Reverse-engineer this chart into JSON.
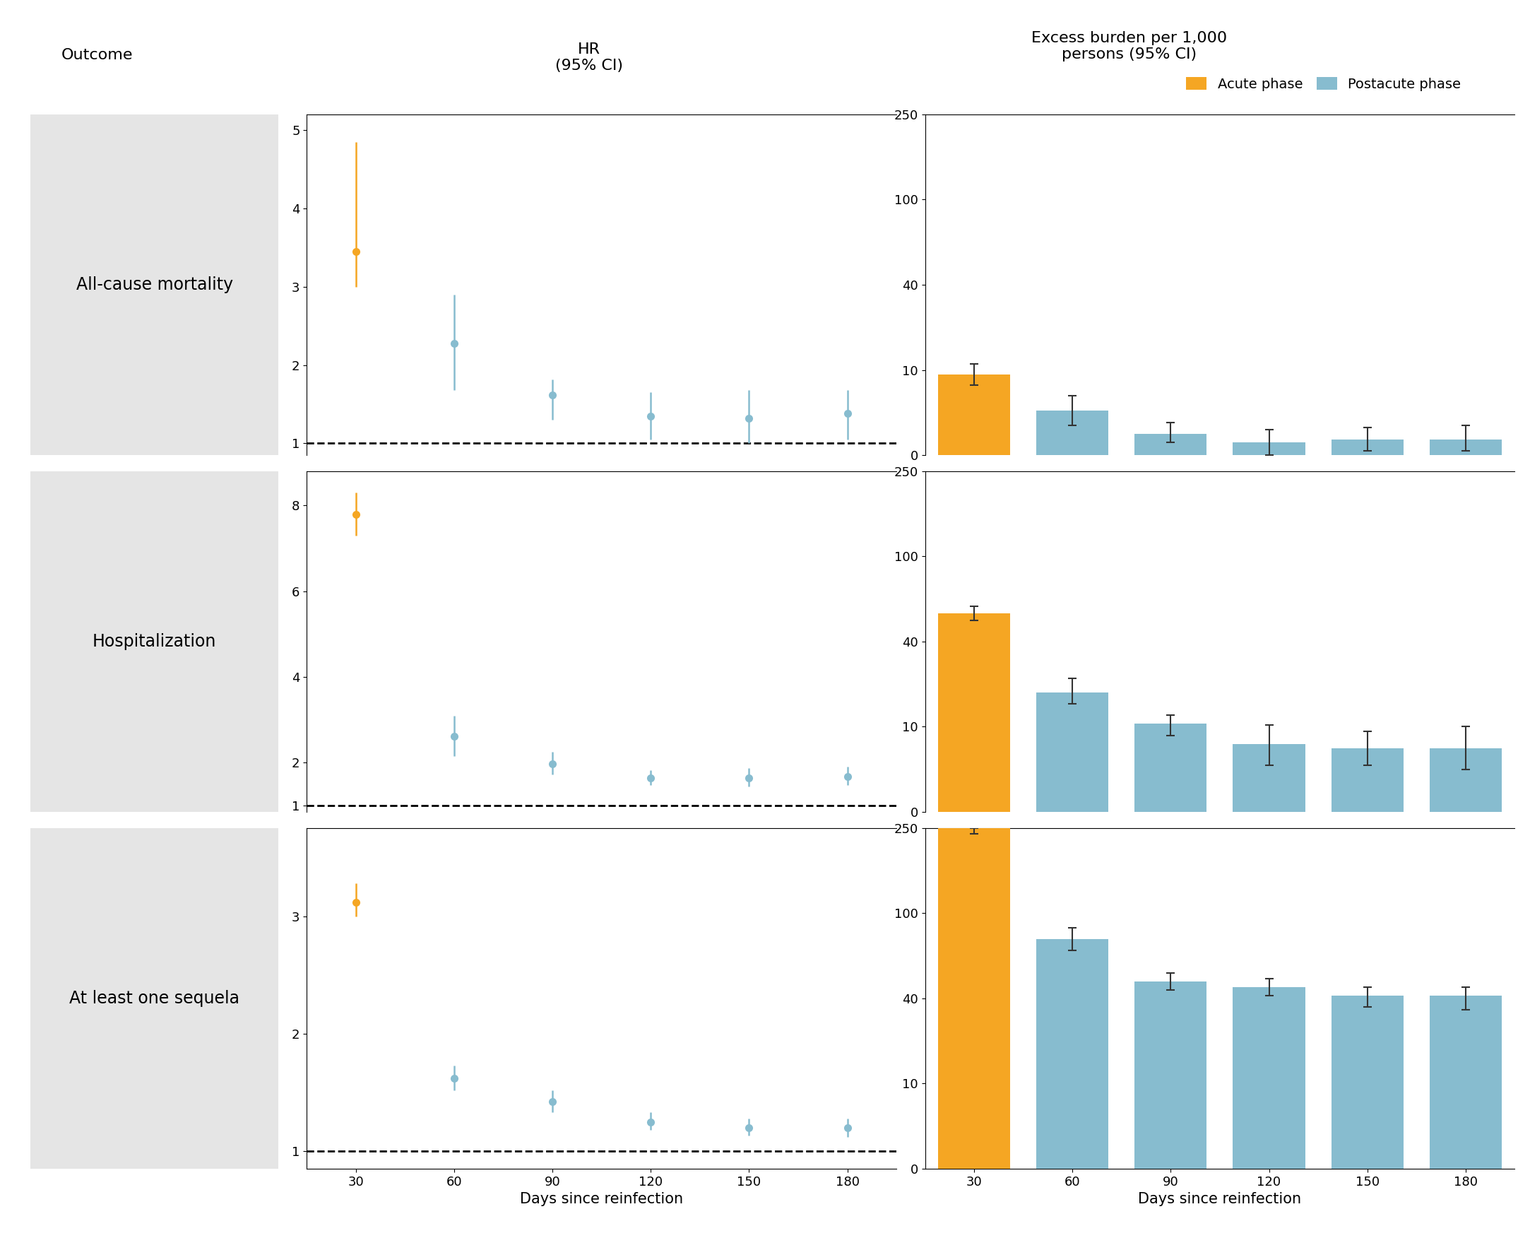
{
  "rows": [
    "All-cause mortality",
    "Hospitalization",
    "At least one sequela"
  ],
  "days": [
    30,
    60,
    90,
    120,
    150,
    180
  ],
  "hr_data": [
    {
      "acute": {
        "val": 3.45,
        "lo": 3.0,
        "hi": 4.85
      },
      "postacute": [
        {
          "val": 2.28,
          "lo": 1.68,
          "hi": 2.9
        },
        {
          "val": 1.62,
          "lo": 1.3,
          "hi": 1.82
        },
        {
          "val": 1.35,
          "lo": 1.05,
          "hi": 1.65
        },
        {
          "val": 1.32,
          "lo": 1.0,
          "hi": 1.68
        },
        {
          "val": 1.38,
          "lo": 1.05,
          "hi": 1.68
        }
      ],
      "ylim": [
        0.85,
        5.2
      ],
      "yticks": [
        1,
        2,
        3,
        4,
        5
      ]
    },
    {
      "acute": {
        "val": 7.8,
        "lo": 7.3,
        "hi": 8.3
      },
      "postacute": [
        {
          "val": 2.62,
          "lo": 2.15,
          "hi": 3.1
        },
        {
          "val": 1.97,
          "lo": 1.72,
          "hi": 2.25
        },
        {
          "val": 1.65,
          "lo": 1.48,
          "hi": 1.82
        },
        {
          "val": 1.65,
          "lo": 1.45,
          "hi": 1.88
        },
        {
          "val": 1.68,
          "lo": 1.48,
          "hi": 1.9
        }
      ],
      "ylim": [
        0.85,
        8.8
      ],
      "yticks": [
        1,
        2,
        4,
        6,
        8
      ]
    },
    {
      "acute": {
        "val": 3.12,
        "lo": 3.0,
        "hi": 3.28
      },
      "postacute": [
        {
          "val": 1.62,
          "lo": 1.52,
          "hi": 1.73
        },
        {
          "val": 1.42,
          "lo": 1.33,
          "hi": 1.52
        },
        {
          "val": 1.25,
          "lo": 1.18,
          "hi": 1.33
        },
        {
          "val": 1.2,
          "lo": 1.13,
          "hi": 1.28
        },
        {
          "val": 1.2,
          "lo": 1.12,
          "hi": 1.28
        }
      ],
      "ylim": [
        0.85,
        3.75
      ],
      "yticks": [
        1,
        2,
        3
      ]
    }
  ],
  "bar_data": [
    {
      "acute": {
        "val": 9.5,
        "lo": 8.2,
        "hi": 12.2
      },
      "postacute": [
        {
          "val": 5.2,
          "lo": 3.5,
          "hi": 7.0
        },
        {
          "val": 2.5,
          "lo": 1.5,
          "hi": 3.8
        },
        {
          "val": 1.5,
          "lo": 0.0,
          "hi": 3.0
        },
        {
          "val": 1.8,
          "lo": 0.5,
          "hi": 3.2
        },
        {
          "val": 1.8,
          "lo": 0.5,
          "hi": 3.5
        }
      ],
      "ytick_vals": [
        0,
        10,
        40,
        100,
        250
      ],
      "ytick_labels": [
        "0",
        "10",
        "40",
        "100",
        "250"
      ]
    },
    {
      "acute": {
        "val": 60.0,
        "lo": 55.0,
        "hi": 65.0
      },
      "postacute": [
        {
          "val": 22.0,
          "lo": 18.0,
          "hi": 27.0
        },
        {
          "val": 11.0,
          "lo": 9.0,
          "hi": 14.0
        },
        {
          "val": 8.0,
          "lo": 5.5,
          "hi": 10.5
        },
        {
          "val": 7.5,
          "lo": 5.5,
          "hi": 9.5
        },
        {
          "val": 7.5,
          "lo": 5.0,
          "hi": 10.0
        }
      ],
      "ytick_vals": [
        0,
        10,
        40,
        100,
        250
      ],
      "ytick_labels": [
        "0",
        "10",
        "40",
        "100",
        "250"
      ]
    },
    {
      "acute": {
        "val": 250.0,
        "lo": 240.0,
        "hi": 258.0
      },
      "postacute": [
        {
          "val": 82.0,
          "lo": 74.0,
          "hi": 90.0
        },
        {
          "val": 52.0,
          "lo": 46.0,
          "hi": 58.0
        },
        {
          "val": 48.0,
          "lo": 42.0,
          "hi": 54.0
        },
        {
          "val": 42.0,
          "lo": 37.0,
          "hi": 48.0
        },
        {
          "val": 42.0,
          "lo": 36.0,
          "hi": 48.0
        }
      ],
      "ytick_vals": [
        0,
        10,
        40,
        100,
        250
      ],
      "ytick_labels": [
        "0",
        "10",
        "40",
        "100",
        "250"
      ]
    }
  ],
  "orange_color": "#F5A623",
  "blue_color": "#87BCCF",
  "bg_color": "#E5E5E5",
  "header_hr": "HR\n(95% CI)",
  "header_burden": "Excess burden per 1,000\npersons (95% CI)",
  "legend_acute": "Acute phase",
  "legend_postacute": "Postacute phase",
  "xlabel": "Days since reinfection",
  "outcome_label": "Outcome"
}
